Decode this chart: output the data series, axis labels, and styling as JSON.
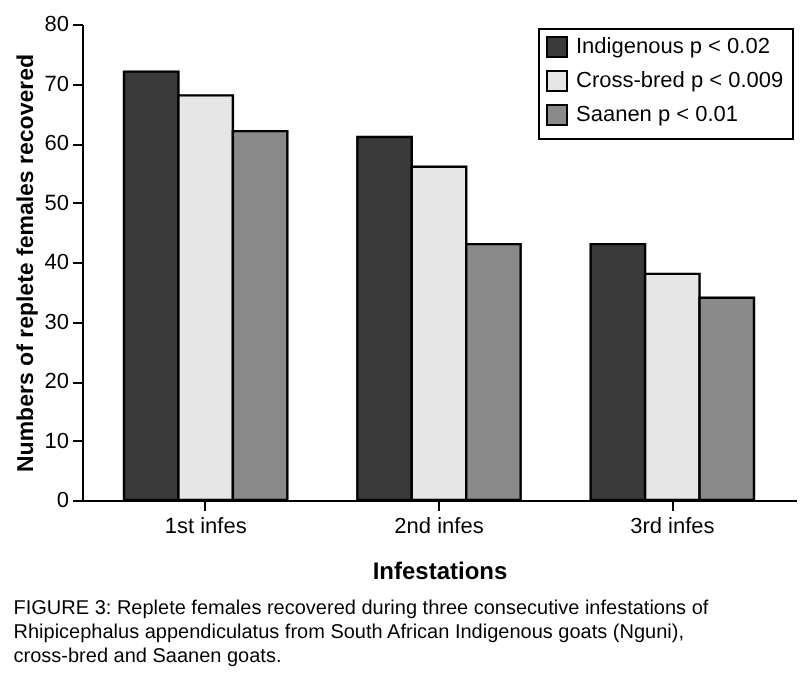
{
  "chart_data": {
    "type": "bar",
    "categories": [
      "1st infes",
      "2nd infes",
      "3rd infes"
    ],
    "series": [
      {
        "name": "Indigenous p < 0.02",
        "color": "#3a3a3a",
        "values": [
          72,
          61,
          43
        ]
      },
      {
        "name": "Cross-bred p < 0.009",
        "color": "#e6e6e6",
        "values": [
          68,
          56,
          38
        ]
      },
      {
        "name": "Saanen p < 0.01",
        "color": "#8a8a8a",
        "values": [
          62,
          43,
          34
        ]
      }
    ],
    "xlabel": "Infestations",
    "ylabel": "Numbers of replete females recovered",
    "ylim": [
      0,
      80
    ],
    "yticks": [
      0,
      10,
      20,
      30,
      40,
      50,
      60,
      70,
      80
    ],
    "grid": false,
    "legend": "top right",
    "annotations": [
      "FIGURE 3: Replete females recovered during three consecutive infestations of Rhipicephalus appendiculatus from South African Indigenous goats (Nguni), cross-bred and Saanen goats."
    ]
  }
}
